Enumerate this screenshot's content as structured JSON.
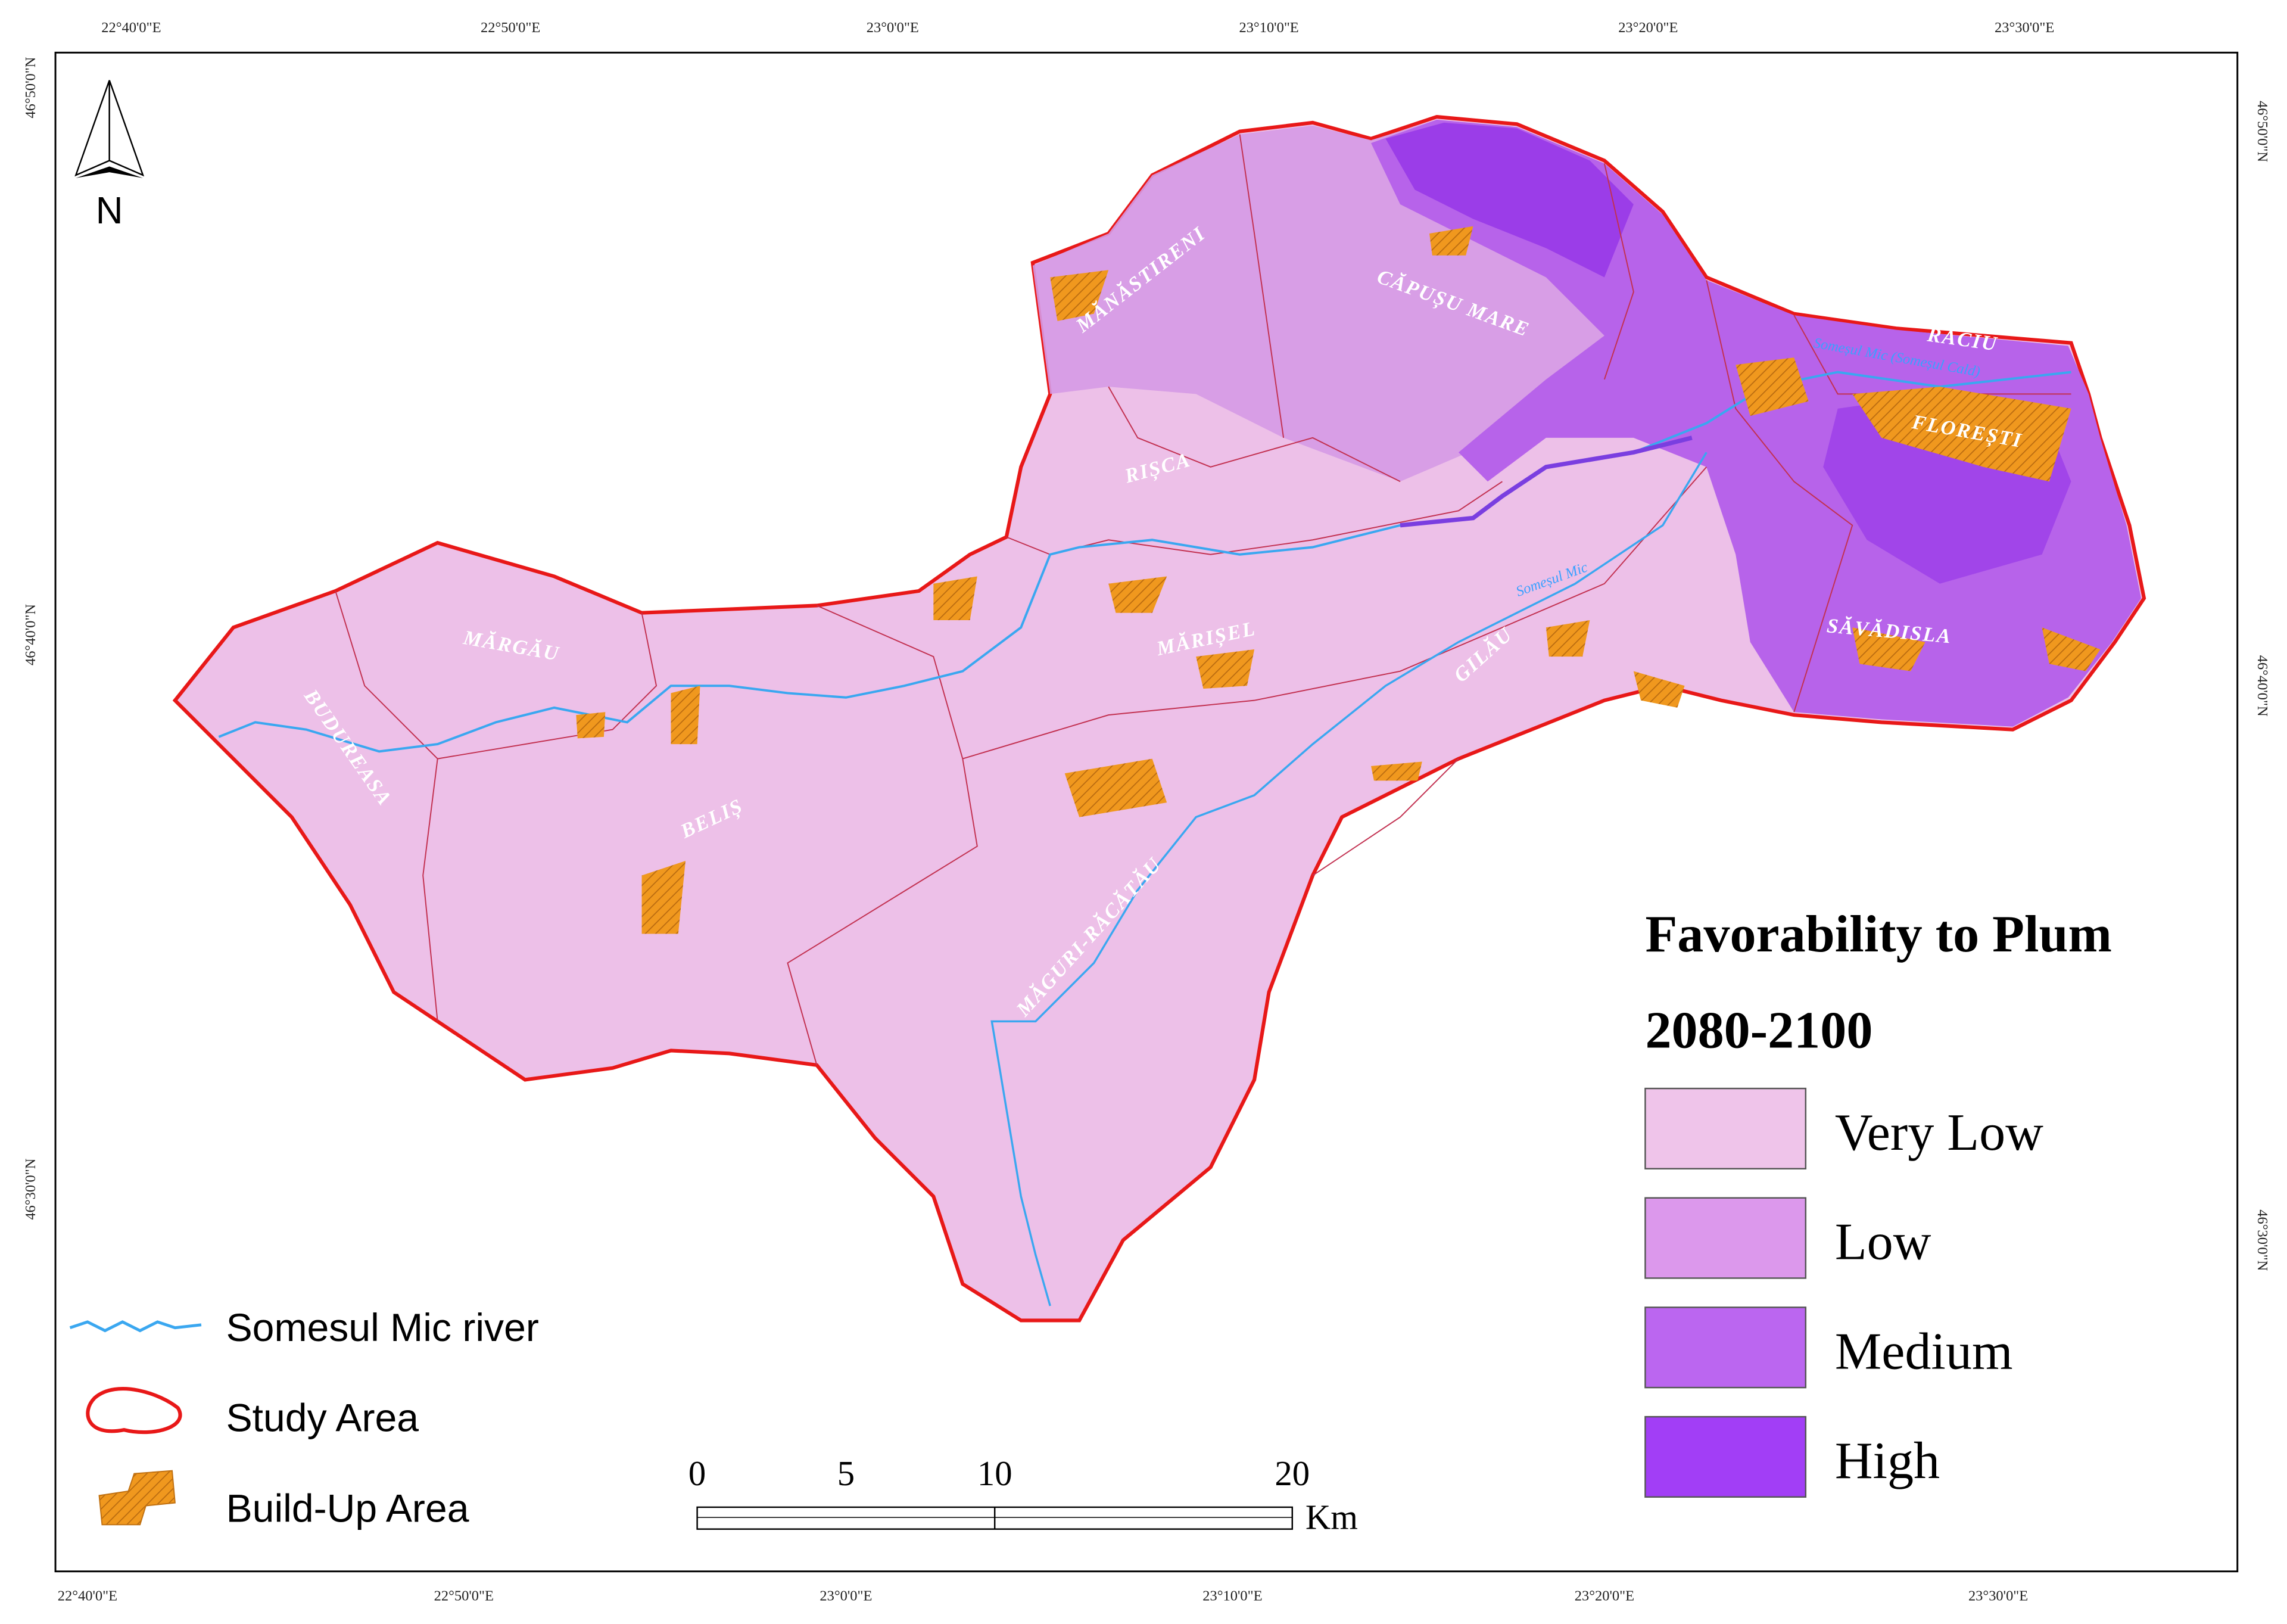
{
  "frame": {
    "top_labels": [
      "22°40'0\"E",
      "22°50'0\"E",
      "23°0'0\"E",
      "23°10'0\"E",
      "23°20'0\"E",
      "23°30'0\"E"
    ],
    "bottom_labels": [
      "22°40'0\"E",
      "22°50'0\"E",
      "23°0'0\"E",
      "23°10'0\"E",
      "23°20'0\"E",
      "23°30'0\"E"
    ],
    "left_labels": [
      "46°50'0\"N",
      "46°40'0\"N",
      "46°30'0\"N"
    ],
    "right_labels": [
      "46°50'0\"N",
      "46°40'0\"N",
      "46°30'0\"N"
    ]
  },
  "north_arrow": {
    "label": "N"
  },
  "places": [
    "MĂNĂSTIRENI",
    "CĂPUȘU MARE",
    "RĂCIU",
    "FLOREȘTI",
    "RIȘCA",
    "MĂRGĂU",
    "BUDUREASA",
    "MĂRIȘEL",
    "GILĂU",
    "SĂVĂDISLA",
    "BELIȘ",
    "MĂGURI-RĂCĂTĂU"
  ],
  "river_labels": [
    "Someșul Mic (Someșul Cald)",
    "Someșul Mic"
  ],
  "legend": {
    "title": "Favorability to Plum",
    "period": "2080-2100",
    "classes": [
      {
        "label": "Very Low",
        "color": "#efc4ea"
      },
      {
        "label": "Low",
        "color": "#dc98ec"
      },
      {
        "label": "Medium",
        "color": "#bb66f0"
      },
      {
        "label": "High",
        "color": "#a23ef6"
      }
    ]
  },
  "layers_legend": [
    "Somesul Mic river",
    "Study Area",
    "Build-Up Area"
  ],
  "scale_bar": {
    "ticks": [
      0,
      5,
      10,
      20
    ],
    "unit": "Km"
  }
}
